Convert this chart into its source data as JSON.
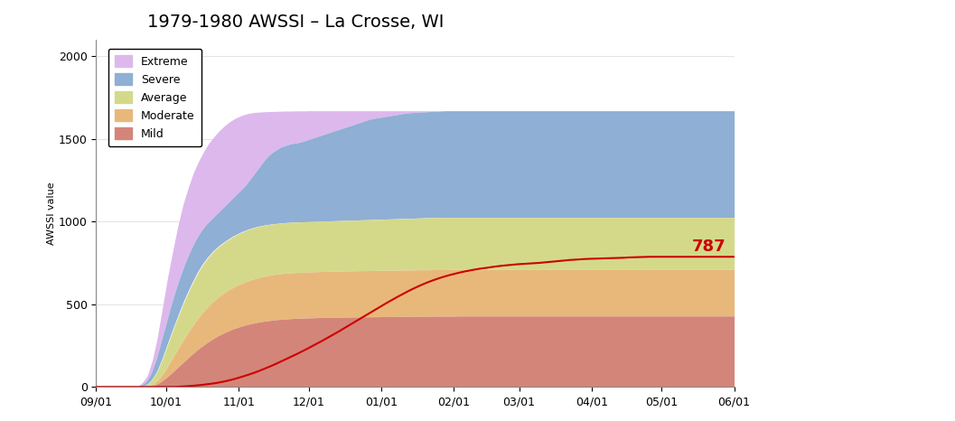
{
  "title": "1979-1980 AWSSI – La Crosse, WI",
  "ylabel": "AWSSI value",
  "ylim": [
    0,
    2100
  ],
  "yticks": [
    0,
    500,
    1000,
    1500,
    2000
  ],
  "background_color": "#ffffff",
  "annotation_value": "787",
  "annotation_color": "#cc0000",
  "x_labels": [
    "09/01",
    "10/01",
    "11/01",
    "12/01",
    "01/01",
    "02/01",
    "03/01",
    "04/01",
    "05/01",
    "06/01"
  ],
  "x_positions": [
    0,
    30,
    61,
    91,
    122,
    153,
    181,
    212,
    242,
    273
  ],
  "bands": {
    "extreme": {
      "color": "#ddb8ed",
      "alpha": 1.0,
      "lower": [
        0,
        0,
        0,
        0,
        0,
        0,
        0,
        0,
        0,
        10,
        30,
        80,
        160,
        270,
        380,
        490,
        590,
        680,
        760,
        830,
        890,
        940,
        980,
        1010,
        1040,
        1070,
        1100,
        1130,
        1160,
        1190,
        1220,
        1260,
        1300,
        1340,
        1380,
        1410,
        1430,
        1450,
        1460,
        1470,
        1475,
        1480,
        1490,
        1500,
        1510,
        1520,
        1530,
        1540,
        1550,
        1560,
        1570,
        1580,
        1590,
        1600,
        1610,
        1620,
        1625,
        1630,
        1635,
        1640,
        1645,
        1650,
        1655,
        1658,
        1660,
        1662,
        1663,
        1665,
        1667,
        1668,
        1670,
        1670,
        1670,
        1670,
        1670,
        1670,
        1670,
        1670,
        1670,
        1670,
        1670,
        1670,
        1670,
        1670,
        1670,
        1670,
        1670,
        1670,
        1670,
        1670,
        1670,
        1670,
        1670,
        1670,
        1670,
        1670,
        1670,
        1670,
        1670,
        1670,
        1670,
        1670,
        1670,
        1670,
        1670,
        1670,
        1670,
        1670,
        1670,
        1670,
        1670,
        1670,
        1670,
        1670,
        1670,
        1670,
        1670,
        1670,
        1670,
        1670,
        1670,
        1670,
        1670,
        1670,
        1670,
        1670,
        1670,
        1670,
        1670
      ],
      "upper": [
        0,
        0,
        0,
        0,
        0,
        0,
        0,
        0,
        0,
        25,
        65,
        160,
        300,
        480,
        660,
        820,
        970,
        1100,
        1200,
        1290,
        1360,
        1420,
        1470,
        1510,
        1545,
        1575,
        1600,
        1620,
        1635,
        1647,
        1655,
        1660,
        1662,
        1664,
        1665,
        1666,
        1667,
        1668,
        1668,
        1669,
        1669,
        1669,
        1670,
        1670,
        1670,
        1670,
        1670,
        1670,
        1670,
        1670,
        1670,
        1670,
        1670,
        1670,
        1670,
        1670,
        1670,
        1670,
        1670,
        1670,
        1670,
        1670,
        1670,
        1670,
        1670,
        1670,
        1670,
        1670,
        1670,
        1670,
        1670,
        1670,
        1670,
        1670,
        1670,
        1670,
        1670,
        1670,
        1670,
        1670,
        1670,
        1670,
        1670,
        1670,
        1670,
        1670,
        1670,
        1670,
        1670,
        1670,
        1670,
        1670,
        1670,
        1670,
        1670,
        1670,
        1670,
        1670,
        1670,
        1670,
        1670,
        1670,
        1670,
        1670,
        1670,
        1670,
        1670,
        1670,
        1670,
        1670,
        1670,
        1670,
        1670,
        1670,
        1670,
        1670,
        1670,
        1670,
        1670,
        1670,
        1670,
        1670,
        1670,
        1670,
        1670,
        1670
      ]
    },
    "severe": {
      "color": "#8fafd4",
      "alpha": 1.0,
      "lower": [
        0,
        0,
        0,
        0,
        0,
        0,
        0,
        0,
        0,
        5,
        15,
        45,
        95,
        170,
        255,
        340,
        420,
        500,
        570,
        635,
        695,
        745,
        785,
        820,
        848,
        872,
        893,
        912,
        928,
        942,
        954,
        964,
        972,
        978,
        983,
        987,
        990,
        993,
        995,
        997,
        998,
        999,
        1000,
        1001,
        1002,
        1003,
        1004,
        1005,
        1006,
        1007,
        1008,
        1009,
        1010,
        1011,
        1012,
        1013,
        1014,
        1015,
        1016,
        1017,
        1018,
        1019,
        1020,
        1021,
        1022,
        1023,
        1024,
        1025,
        1025,
        1025,
        1025,
        1025,
        1025,
        1025,
        1025,
        1025,
        1025,
        1025,
        1025,
        1025,
        1025,
        1025,
        1025,
        1025,
        1025,
        1025,
        1025,
        1025,
        1025,
        1025,
        1025,
        1025,
        1025,
        1025,
        1025,
        1025,
        1025,
        1025,
        1025,
        1025,
        1025,
        1025,
        1025,
        1025,
        1025,
        1025,
        1025,
        1025,
        1025,
        1025,
        1025,
        1025,
        1025,
        1025,
        1025,
        1025,
        1025,
        1025,
        1025,
        1025,
        1025,
        1025,
        1025,
        1025,
        1025,
        1025,
        1025
      ],
      "upper": [
        0,
        0,
        0,
        0,
        0,
        0,
        0,
        0,
        0,
        10,
        30,
        80,
        160,
        270,
        380,
        490,
        590,
        680,
        760,
        830,
        890,
        940,
        980,
        1010,
        1040,
        1070,
        1100,
        1130,
        1160,
        1190,
        1220,
        1260,
        1300,
        1340,
        1380,
        1410,
        1430,
        1450,
        1460,
        1470,
        1475,
        1480,
        1490,
        1500,
        1510,
        1520,
        1530,
        1540,
        1550,
        1560,
        1570,
        1580,
        1590,
        1600,
        1610,
        1620,
        1625,
        1630,
        1635,
        1640,
        1645,
        1650,
        1655,
        1658,
        1660,
        1662,
        1663,
        1665,
        1667,
        1668,
        1670,
        1670,
        1670,
        1670,
        1670,
        1670,
        1670,
        1670,
        1670,
        1670,
        1670,
        1670,
        1670,
        1670,
        1670,
        1670,
        1670,
        1670,
        1670,
        1670,
        1670,
        1670,
        1670,
        1670,
        1670,
        1670,
        1670,
        1670,
        1670,
        1670,
        1670,
        1670,
        1670,
        1670,
        1670,
        1670,
        1670,
        1670,
        1670,
        1670,
        1670,
        1670,
        1670,
        1670,
        1670,
        1670,
        1670,
        1670,
        1670,
        1670,
        1670,
        1670,
        1670,
        1670,
        1670,
        1670,
        1670,
        1670,
        1670
      ]
    },
    "average": {
      "color": "#d4d98a",
      "alpha": 1.0,
      "lower": [
        0,
        0,
        0,
        0,
        0,
        0,
        0,
        0,
        0,
        2,
        7,
        22,
        50,
        95,
        148,
        202,
        256,
        308,
        357,
        402,
        443,
        479,
        511,
        539,
        563,
        584,
        602,
        618,
        632,
        644,
        654,
        663,
        670,
        676,
        681,
        685,
        688,
        690,
        692,
        694,
        695,
        696,
        697,
        698,
        699,
        700,
        701,
        701,
        702,
        702,
        703,
        703,
        704,
        704,
        705,
        705,
        706,
        706,
        707,
        707,
        707,
        708,
        708,
        708,
        709,
        709,
        709,
        710,
        710,
        710,
        710,
        710,
        710,
        710,
        710,
        710,
        710,
        710,
        710,
        710,
        710,
        710,
        710,
        710,
        710,
        710,
        710,
        710,
        710,
        710,
        710,
        710,
        710,
        710,
        710,
        710,
        710,
        710,
        710,
        710,
        710,
        710,
        710,
        710,
        710,
        710,
        710,
        710,
        710,
        710,
        710,
        710,
        710,
        710,
        710,
        710,
        710,
        710,
        710,
        710,
        710,
        710
      ],
      "upper": [
        0,
        0,
        0,
        0,
        0,
        0,
        0,
        0,
        0,
        5,
        15,
        45,
        95,
        170,
        255,
        340,
        420,
        500,
        570,
        635,
        695,
        745,
        785,
        820,
        848,
        872,
        893,
        912,
        928,
        942,
        954,
        964,
        972,
        978,
        983,
        987,
        990,
        993,
        995,
        997,
        998,
        999,
        1000,
        1001,
        1002,
        1003,
        1004,
        1005,
        1006,
        1007,
        1008,
        1009,
        1010,
        1011,
        1012,
        1013,
        1014,
        1015,
        1016,
        1017,
        1018,
        1019,
        1020,
        1021,
        1022,
        1023,
        1024,
        1025,
        1025,
        1025,
        1025,
        1025,
        1025,
        1025,
        1025,
        1025,
        1025,
        1025,
        1025,
        1025,
        1025,
        1025,
        1025,
        1025,
        1025,
        1025,
        1025,
        1025,
        1025,
        1025,
        1025,
        1025,
        1025,
        1025,
        1025,
        1025,
        1025,
        1025,
        1025,
        1025,
        1025,
        1025,
        1025,
        1025,
        1025,
        1025,
        1025,
        1025,
        1025,
        1025,
        1025,
        1025,
        1025,
        1025,
        1025,
        1025,
        1025,
        1025,
        1025,
        1025,
        1025,
        1025,
        1025,
        1025,
        1025,
        1025
      ]
    },
    "moderate": {
      "color": "#e8b87a",
      "alpha": 1.0,
      "lower": [
        0,
        0,
        0,
        0,
        0,
        0,
        0,
        0,
        0,
        0,
        3,
        10,
        25,
        48,
        75,
        104,
        134,
        163,
        192,
        219,
        244,
        267,
        288,
        307,
        323,
        338,
        351,
        362,
        372,
        380,
        387,
        393,
        398,
        402,
        406,
        409,
        411,
        413,
        415,
        416,
        417,
        418,
        419,
        420,
        420,
        421,
        421,
        422,
        422,
        423,
        423,
        424,
        424,
        424,
        425,
        425,
        425,
        426,
        426,
        426,
        427,
        427,
        427,
        427,
        428,
        428,
        428,
        428,
        428,
        429,
        429,
        429,
        429,
        429,
        429,
        429,
        429,
        429,
        429,
        429,
        429,
        429,
        429,
        429,
        429,
        429,
        429,
        429,
        429,
        429,
        429,
        429,
        429,
        429,
        429,
        429,
        429,
        429,
        429,
        429,
        429,
        429,
        429,
        429,
        429,
        429,
        429,
        429,
        429,
        429,
        429,
        429,
        429,
        429,
        429,
        429,
        429,
        429,
        429,
        429,
        429,
        429
      ],
      "upper": [
        0,
        0,
        0,
        0,
        0,
        0,
        0,
        0,
        0,
        2,
        7,
        22,
        50,
        95,
        148,
        202,
        256,
        308,
        357,
        402,
        443,
        479,
        511,
        539,
        563,
        584,
        602,
        618,
        632,
        644,
        654,
        663,
        670,
        676,
        681,
        685,
        688,
        690,
        692,
        694,
        695,
        696,
        697,
        698,
        699,
        700,
        701,
        701,
        702,
        702,
        703,
        703,
        704,
        704,
        705,
        705,
        706,
        706,
        707,
        707,
        707,
        708,
        708,
        708,
        709,
        709,
        709,
        710,
        710,
        710,
        710,
        710,
        710,
        710,
        710,
        710,
        710,
        710,
        710,
        710,
        710,
        710,
        710,
        710,
        710,
        710,
        710,
        710,
        710,
        710,
        710,
        710,
        710,
        710,
        710,
        710,
        710,
        710,
        710,
        710,
        710,
        710,
        710,
        710,
        710,
        710,
        710,
        710,
        710,
        710,
        710,
        710,
        710,
        710,
        710,
        710,
        710,
        710,
        710,
        710,
        710,
        710
      ]
    },
    "mild": {
      "color": "#d4857a",
      "alpha": 1.0,
      "lower": [
        0,
        0,
        0,
        0,
        0,
        0,
        0,
        0,
        0,
        0,
        0,
        0,
        0,
        0,
        0,
        0,
        0,
        0,
        0,
        0,
        0,
        0,
        0,
        0,
        0,
        0,
        0,
        0,
        0,
        0,
        0,
        0,
        0,
        0,
        0,
        0,
        0,
        0,
        0,
        0,
        0,
        0,
        0,
        0,
        0,
        0,
        0,
        0,
        0,
        0,
        0,
        0,
        0,
        0,
        0,
        0,
        0,
        0,
        0,
        0,
        0,
        0,
        0,
        0,
        0,
        0,
        0,
        0,
        0,
        0,
        0,
        0,
        0,
        0,
        0,
        0,
        0,
        0,
        0,
        0,
        0,
        0,
        0,
        0,
        0,
        0,
        0,
        0,
        0,
        0,
        0,
        0,
        0,
        0,
        0,
        0,
        0,
        0,
        0,
        0,
        0,
        0,
        0,
        0,
        0,
        0,
        0,
        0,
        0,
        0,
        0,
        0,
        0,
        0,
        0,
        0,
        0,
        0,
        0,
        0,
        0,
        0
      ],
      "upper": [
        0,
        0,
        0,
        0,
        0,
        0,
        0,
        0,
        0,
        0,
        3,
        10,
        25,
        48,
        75,
        104,
        134,
        163,
        192,
        219,
        244,
        267,
        288,
        307,
        323,
        338,
        351,
        362,
        372,
        380,
        387,
        393,
        398,
        402,
        406,
        409,
        411,
        413,
        415,
        416,
        417,
        418,
        419,
        420,
        420,
        421,
        421,
        422,
        422,
        423,
        423,
        424,
        424,
        424,
        425,
        425,
        425,
        426,
        426,
        426,
        427,
        427,
        427,
        427,
        428,
        428,
        428,
        428,
        428,
        429,
        429,
        429,
        429,
        429,
        429,
        429,
        429,
        429,
        429,
        429,
        429,
        429,
        429,
        429,
        429,
        429,
        429,
        429,
        429,
        429,
        429,
        429,
        429,
        429,
        429,
        429,
        429,
        429,
        429,
        429,
        429,
        429,
        429,
        429,
        429,
        429,
        429,
        429,
        429,
        429,
        429,
        429,
        429,
        429,
        429,
        429,
        429,
        429,
        429,
        429,
        429,
        429
      ]
    }
  },
  "actual_line": {
    "color": "#cc0000",
    "linewidth": 1.5,
    "values": [
      0,
      0,
      0,
      0,
      0,
      0,
      0,
      0,
      0,
      0,
      0,
      0,
      0,
      0,
      0,
      0,
      2,
      4,
      6,
      9,
      12,
      16,
      20,
      25,
      31,
      38,
      46,
      55,
      65,
      75,
      86,
      98,
      111,
      124,
      138,
      153,
      168,
      183,
      198,
      214,
      230,
      247,
      264,
      281,
      299,
      317,
      335,
      354,
      373,
      392,
      411,
      430,
      449,
      468,
      487,
      506,
      524,
      542,
      559,
      576,
      592,
      607,
      621,
      634,
      646,
      657,
      667,
      676,
      684,
      692,
      699,
      705,
      711,
      716,
      720,
      725,
      729,
      733,
      736,
      739,
      742,
      744,
      746,
      748,
      750,
      753,
      756,
      759,
      762,
      765,
      768,
      770,
      772,
      774,
      775,
      776,
      777,
      778,
      779,
      780,
      781,
      783,
      784,
      785,
      786,
      787,
      787,
      787,
      787,
      787,
      787,
      787,
      787,
      787,
      787,
      787,
      787,
      787,
      787,
      787,
      787,
      787
    ]
  },
  "legend": {
    "entries": [
      "Extreme",
      "Severe",
      "Average",
      "Moderate",
      "Mild"
    ],
    "colors": [
      "#ddb8ed",
      "#8fafd4",
      "#d4d98a",
      "#e8b87a",
      "#d4857a"
    ]
  },
  "grid_color": "#cccccc",
  "grid_alpha": 0.5,
  "n_days": 122
}
